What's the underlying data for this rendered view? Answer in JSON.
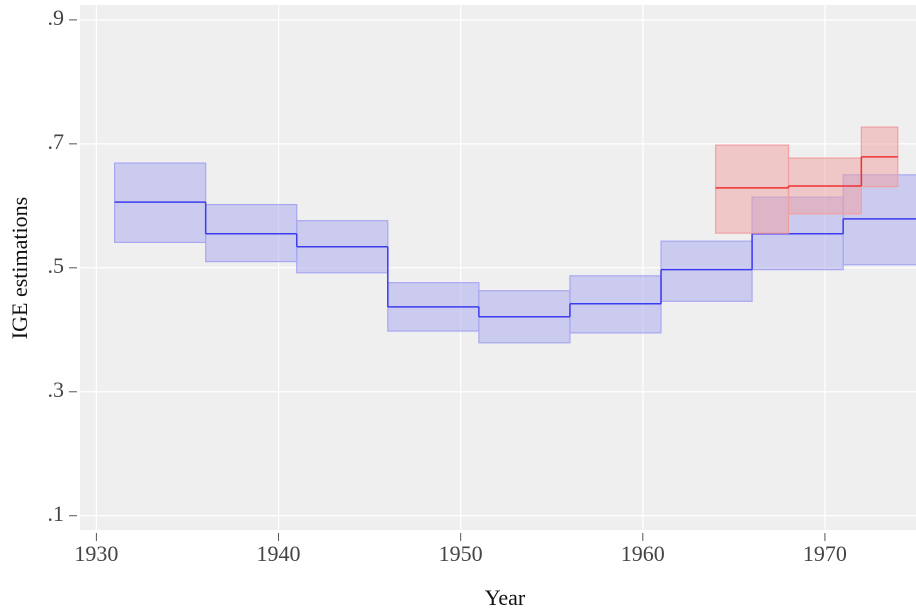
{
  "chart_data": {
    "type": "step-band",
    "x_label": "Year",
    "y_label": "IGE estimations",
    "xlim": [
      1929.1,
      1975
    ],
    "ylim": [
      0.077,
      0.924
    ],
    "xticks": [
      1930,
      1940,
      1950,
      1960,
      1970
    ],
    "yticks": [
      {
        "value": 0.1,
        "label": ".1"
      },
      {
        "value": 0.3,
        "label": ".3"
      },
      {
        "value": 0.5,
        "label": ".5"
      },
      {
        "value": 0.7,
        "label": ".7"
      },
      {
        "value": 0.9,
        "label": ".9"
      }
    ],
    "grid": true,
    "series": [
      {
        "color": "#3b3bf0",
        "band_color": "#a8a8f0",
        "bins": [
          1931,
          1936,
          1941,
          1946,
          1951,
          1956,
          1961,
          1966,
          1971,
          1976
        ],
        "values": [
          0.606,
          0.555,
          0.534,
          0.437,
          0.421,
          0.442,
          0.497,
          0.555,
          0.579
        ],
        "lower": [
          0.541,
          0.51,
          0.492,
          0.398,
          0.379,
          0.395,
          0.446,
          0.497,
          0.505
        ],
        "upper": [
          0.669,
          0.602,
          0.576,
          0.476,
          0.463,
          0.487,
          0.543,
          0.614,
          0.65
        ]
      },
      {
        "color": "#f03030",
        "band_color": "#f0a0a0",
        "bins": [
          1964,
          1968,
          1972,
          1974
        ],
        "values": [
          0.629,
          0.632,
          0.679
        ],
        "lower": [
          0.556,
          0.587,
          0.631
        ],
        "upper": [
          0.698,
          0.677,
          0.727
        ]
      }
    ]
  }
}
